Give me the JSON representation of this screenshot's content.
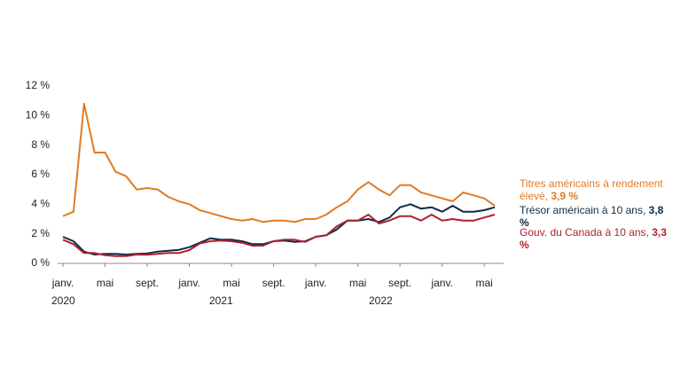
{
  "chart_data": {
    "type": "line",
    "categories": [
      "janv.",
      null,
      null,
      null,
      "mai",
      null,
      null,
      null,
      "sept.",
      null,
      null,
      null,
      "janv.",
      null,
      null,
      null,
      "mai",
      null,
      null,
      null,
      "sept.",
      null,
      null,
      null,
      "janv.",
      null,
      null,
      null,
      "mai",
      null,
      null,
      null,
      "sept.",
      null,
      null,
      null,
      "janv.",
      null,
      null,
      null,
      "mai",
      null
    ],
    "year_labels": [
      "2020",
      "2021",
      "2022"
    ],
    "ylim": [
      0,
      12
    ],
    "yticks": [
      {
        "value": 0,
        "label": "0 %"
      },
      {
        "value": 2,
        "label": "2 %"
      },
      {
        "value": 4,
        "label": "4 %"
      },
      {
        "value": 6,
        "label": "6 %"
      },
      {
        "value": 8,
        "label": "8 %"
      },
      {
        "value": 10,
        "label": "10 %"
      },
      {
        "value": 12,
        "label": "12 %"
      }
    ],
    "grid": false,
    "series": [
      {
        "name": "Titres américains à rendement élevé,",
        "end_label": "3,9 %",
        "color": "#e07b24",
        "values": [
          3.2,
          3.5,
          10.8,
          7.5,
          7.5,
          6.2,
          5.9,
          5.0,
          5.1,
          5.0,
          4.5,
          4.2,
          4.0,
          3.6,
          3.4,
          3.2,
          3.0,
          2.9,
          3.0,
          2.8,
          2.9,
          2.9,
          2.8,
          3.0,
          3.0,
          3.3,
          3.8,
          4.2,
          5.0,
          5.5,
          5.0,
          4.6,
          5.3,
          5.3,
          4.8,
          4.6,
          4.4,
          4.2,
          4.8,
          4.6,
          4.4,
          3.9
        ]
      },
      {
        "name": "Trésor américain à 10 ans,",
        "end_label": "3,8 %",
        "color": "#0d2c45",
        "values": [
          1.8,
          1.5,
          0.8,
          0.6,
          0.65,
          0.65,
          0.6,
          0.65,
          0.68,
          0.8,
          0.85,
          0.92,
          1.1,
          1.4,
          1.7,
          1.6,
          1.6,
          1.5,
          1.3,
          1.3,
          1.5,
          1.55,
          1.45,
          1.5,
          1.8,
          1.9,
          2.3,
          2.9,
          2.9,
          3.0,
          2.8,
          3.1,
          3.8,
          4.0,
          3.7,
          3.8,
          3.5,
          3.9,
          3.5,
          3.5,
          3.6,
          3.8
        ]
      },
      {
        "name": "Gouv. du Canada à 10 ans,",
        "end_label": "3,3 %",
        "color": "#b0202e",
        "values": [
          1.6,
          1.3,
          0.7,
          0.7,
          0.55,
          0.5,
          0.5,
          0.6,
          0.58,
          0.65,
          0.7,
          0.7,
          0.9,
          1.35,
          1.5,
          1.55,
          1.5,
          1.4,
          1.2,
          1.2,
          1.5,
          1.6,
          1.6,
          1.45,
          1.8,
          1.9,
          2.5,
          2.9,
          2.9,
          3.3,
          2.7,
          2.9,
          3.2,
          3.2,
          2.9,
          3.3,
          2.9,
          3.0,
          2.9,
          2.9,
          3.1,
          3.3
        ]
      }
    ]
  }
}
